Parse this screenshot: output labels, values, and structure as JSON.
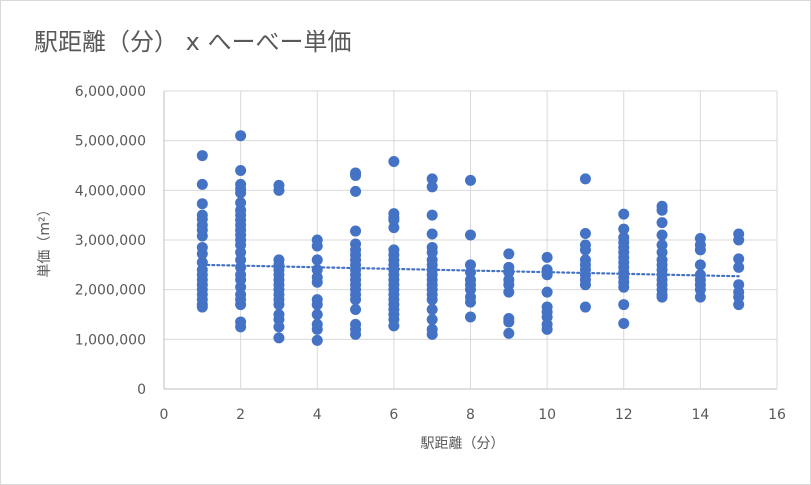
{
  "chart_data": {
    "type": "scatter",
    "title": "駅距離（分） x へーべー単価",
    "xlabel": "駅距離（分）",
    "ylabel": "単価（m²）",
    "xlim": [
      0,
      16
    ],
    "ylim": [
      0,
      6000000
    ],
    "x_ticks": [
      0,
      2,
      4,
      6,
      8,
      10,
      12,
      14,
      16
    ],
    "y_ticks": [
      0,
      1000000,
      2000000,
      3000000,
      4000000,
      5000000,
      6000000
    ],
    "y_tick_labels": [
      "0",
      "1,000,000",
      "2,000,000",
      "3,000,000",
      "4,000,000",
      "5,000,000",
      "6,000,000"
    ],
    "x_tick_labels": [
      "0",
      "2",
      "4",
      "6",
      "8",
      "10",
      "12",
      "14",
      "16"
    ],
    "grid": true,
    "marker_color": "#4472c4",
    "trendline": {
      "type": "linear",
      "style": "dotted",
      "color": "#4472c4",
      "x": [
        1,
        15
      ],
      "y": [
        2500000,
        2270000
      ]
    },
    "series": [
      {
        "points": [
          [
            1,
            4700000
          ],
          [
            1,
            4120000
          ],
          [
            1,
            3730000
          ],
          [
            1,
            3500000
          ],
          [
            1,
            3420000
          ],
          [
            1,
            3300000
          ],
          [
            1,
            3200000
          ],
          [
            1,
            3080000
          ],
          [
            1,
            2850000
          ],
          [
            1,
            2720000
          ],
          [
            1,
            2550000
          ],
          [
            1,
            2400000
          ],
          [
            1,
            2300000
          ],
          [
            1,
            2200000
          ],
          [
            1,
            2100000
          ],
          [
            1,
            2000000
          ],
          [
            1,
            1900000
          ],
          [
            1,
            1800000
          ],
          [
            1,
            1700000
          ],
          [
            1,
            1650000
          ],
          [
            2,
            5100000
          ],
          [
            2,
            4400000
          ],
          [
            2,
            4120000
          ],
          [
            2,
            4030000
          ],
          [
            2,
            3950000
          ],
          [
            2,
            3750000
          ],
          [
            2,
            3600000
          ],
          [
            2,
            3500000
          ],
          [
            2,
            3400000
          ],
          [
            2,
            3300000
          ],
          [
            2,
            3200000
          ],
          [
            2,
            3100000
          ],
          [
            2,
            3000000
          ],
          [
            2,
            2900000
          ],
          [
            2,
            2750000
          ],
          [
            2,
            2600000
          ],
          [
            2,
            2450000
          ],
          [
            2,
            2300000
          ],
          [
            2,
            2200000
          ],
          [
            2,
            2050000
          ],
          [
            2,
            1900000
          ],
          [
            2,
            1800000
          ],
          [
            2,
            1700000
          ],
          [
            2,
            1350000
          ],
          [
            2,
            1250000
          ],
          [
            3,
            4100000
          ],
          [
            3,
            4000000
          ],
          [
            3,
            2600000
          ],
          [
            3,
            2500000
          ],
          [
            3,
            2400000
          ],
          [
            3,
            2300000
          ],
          [
            3,
            2200000
          ],
          [
            3,
            2100000
          ],
          [
            3,
            2000000
          ],
          [
            3,
            1900000
          ],
          [
            3,
            1800000
          ],
          [
            3,
            1700000
          ],
          [
            3,
            1500000
          ],
          [
            3,
            1400000
          ],
          [
            3,
            1250000
          ],
          [
            3,
            1030000
          ],
          [
            4,
            3000000
          ],
          [
            4,
            2880000
          ],
          [
            4,
            2600000
          ],
          [
            4,
            2400000
          ],
          [
            4,
            2250000
          ],
          [
            4,
            2150000
          ],
          [
            4,
            1800000
          ],
          [
            4,
            1700000
          ],
          [
            4,
            1500000
          ],
          [
            4,
            1300000
          ],
          [
            4,
            1200000
          ],
          [
            4,
            980000
          ],
          [
            5,
            4350000
          ],
          [
            5,
            4300000
          ],
          [
            5,
            3980000
          ],
          [
            5,
            3180000
          ],
          [
            5,
            2920000
          ],
          [
            5,
            2800000
          ],
          [
            5,
            2700000
          ],
          [
            5,
            2600000
          ],
          [
            5,
            2500000
          ],
          [
            5,
            2400000
          ],
          [
            5,
            2300000
          ],
          [
            5,
            2200000
          ],
          [
            5,
            2100000
          ],
          [
            5,
            2000000
          ],
          [
            5,
            1900000
          ],
          [
            5,
            1800000
          ],
          [
            5,
            1600000
          ],
          [
            5,
            1300000
          ],
          [
            5,
            1200000
          ],
          [
            5,
            1100000
          ],
          [
            6,
            4580000
          ],
          [
            6,
            3530000
          ],
          [
            6,
            3450000
          ],
          [
            6,
            3400000
          ],
          [
            6,
            3250000
          ],
          [
            6,
            2800000
          ],
          [
            6,
            2700000
          ],
          [
            6,
            2600000
          ],
          [
            6,
            2500000
          ],
          [
            6,
            2400000
          ],
          [
            6,
            2300000
          ],
          [
            6,
            2200000
          ],
          [
            6,
            2100000
          ],
          [
            6,
            2000000
          ],
          [
            6,
            1900000
          ],
          [
            6,
            1800000
          ],
          [
            6,
            1700000
          ],
          [
            6,
            1600000
          ],
          [
            6,
            1500000
          ],
          [
            6,
            1400000
          ],
          [
            6,
            1270000
          ],
          [
            7,
            4230000
          ],
          [
            7,
            4070000
          ],
          [
            7,
            3500000
          ],
          [
            7,
            3120000
          ],
          [
            7,
            2850000
          ],
          [
            7,
            2750000
          ],
          [
            7,
            2600000
          ],
          [
            7,
            2500000
          ],
          [
            7,
            2400000
          ],
          [
            7,
            2300000
          ],
          [
            7,
            2200000
          ],
          [
            7,
            2100000
          ],
          [
            7,
            2000000
          ],
          [
            7,
            1900000
          ],
          [
            7,
            1800000
          ],
          [
            7,
            1600000
          ],
          [
            7,
            1400000
          ],
          [
            7,
            1200000
          ],
          [
            7,
            1100000
          ],
          [
            8,
            4200000
          ],
          [
            8,
            3100000
          ],
          [
            8,
            2500000
          ],
          [
            8,
            2350000
          ],
          [
            8,
            2200000
          ],
          [
            8,
            2100000
          ],
          [
            8,
            2000000
          ],
          [
            8,
            1850000
          ],
          [
            8,
            1750000
          ],
          [
            8,
            1450000
          ],
          [
            9,
            2720000
          ],
          [
            9,
            2450000
          ],
          [
            9,
            2350000
          ],
          [
            9,
            2200000
          ],
          [
            9,
            2100000
          ],
          [
            9,
            1950000
          ],
          [
            9,
            1420000
          ],
          [
            9,
            1350000
          ],
          [
            9,
            1120000
          ],
          [
            10,
            2650000
          ],
          [
            10,
            2400000
          ],
          [
            10,
            2300000
          ],
          [
            10,
            1950000
          ],
          [
            10,
            1650000
          ],
          [
            10,
            1550000
          ],
          [
            10,
            1450000
          ],
          [
            10,
            1300000
          ],
          [
            10,
            1200000
          ],
          [
            11,
            4230000
          ],
          [
            11,
            3130000
          ],
          [
            11,
            2900000
          ],
          [
            11,
            2800000
          ],
          [
            11,
            2600000
          ],
          [
            11,
            2500000
          ],
          [
            11,
            2400000
          ],
          [
            11,
            2300000
          ],
          [
            11,
            2200000
          ],
          [
            11,
            2100000
          ],
          [
            11,
            1650000
          ],
          [
            12,
            3520000
          ],
          [
            12,
            3220000
          ],
          [
            12,
            3050000
          ],
          [
            12,
            2950000
          ],
          [
            12,
            2850000
          ],
          [
            12,
            2750000
          ],
          [
            12,
            2650000
          ],
          [
            12,
            2550000
          ],
          [
            12,
            2450000
          ],
          [
            12,
            2350000
          ],
          [
            12,
            2250000
          ],
          [
            12,
            2150000
          ],
          [
            12,
            2050000
          ],
          [
            12,
            1700000
          ],
          [
            12,
            1320000
          ],
          [
            13,
            3680000
          ],
          [
            13,
            3600000
          ],
          [
            13,
            3350000
          ],
          [
            13,
            3100000
          ],
          [
            13,
            2900000
          ],
          [
            13,
            2750000
          ],
          [
            13,
            2600000
          ],
          [
            13,
            2500000
          ],
          [
            13,
            2400000
          ],
          [
            13,
            2300000
          ],
          [
            13,
            2200000
          ],
          [
            13,
            2100000
          ],
          [
            13,
            2000000
          ],
          [
            13,
            1900000
          ],
          [
            13,
            1850000
          ],
          [
            14,
            3030000
          ],
          [
            14,
            2900000
          ],
          [
            14,
            2800000
          ],
          [
            14,
            2500000
          ],
          [
            14,
            2300000
          ],
          [
            14,
            2200000
          ],
          [
            14,
            2100000
          ],
          [
            14,
            2000000
          ],
          [
            14,
            1850000
          ],
          [
            15,
            3120000
          ],
          [
            15,
            3000000
          ],
          [
            15,
            2620000
          ],
          [
            15,
            2450000
          ],
          [
            15,
            2100000
          ],
          [
            15,
            1950000
          ],
          [
            15,
            1850000
          ],
          [
            15,
            1700000
          ]
        ]
      }
    ]
  }
}
